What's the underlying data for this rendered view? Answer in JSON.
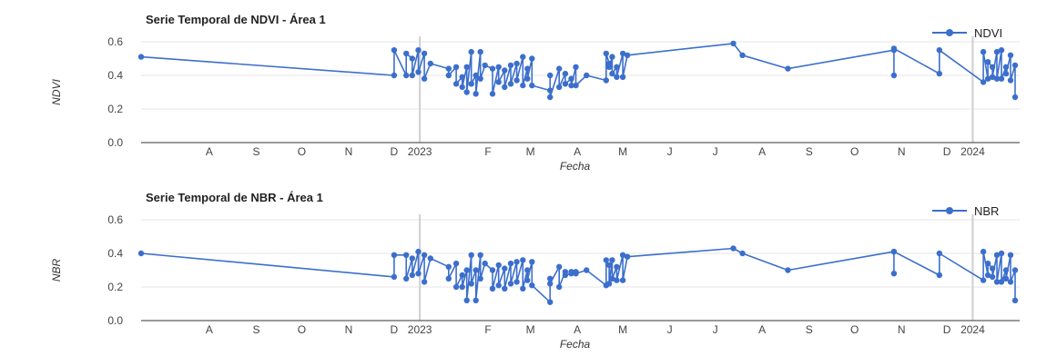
{
  "chart_data": [
    {
      "type": "line",
      "title": "Serie Temporal de NDVI - Área 1",
      "xlabel": "Fecha",
      "ylabel": "NDVI",
      "ylim": [
        0,
        0.6
      ],
      "yticks": [
        "0.0",
        "0.2",
        "0.4",
        "0.6"
      ],
      "xticks": [
        "A",
        "S",
        "O",
        "N",
        "D",
        "2023",
        "F",
        "M",
        "A",
        "M",
        "J",
        "J",
        "A",
        "S",
        "O",
        "N",
        "D",
        "2024"
      ],
      "legend_position": "top-right",
      "color": "#3c6fcc",
      "series": [
        {
          "name": "NDVI",
          "points": [
            [
              "2022-07-01",
              0.51
            ],
            [
              "2022-12-15",
              0.4
            ],
            [
              "2022-12-15",
              0.55
            ],
            [
              "2022-12-23",
              0.4
            ],
            [
              "2022-12-23",
              0.53
            ],
            [
              "2022-12-27",
              0.5
            ],
            [
              "2022-12-27",
              0.4
            ],
            [
              "2022-12-31",
              0.55
            ],
            [
              "2022-12-31",
              0.42
            ],
            [
              "2023-01-04",
              0.53
            ],
            [
              "2023-01-04",
              0.38
            ],
            [
              "2023-01-08",
              0.47
            ],
            [
              "2023-01-20",
              0.44
            ],
            [
              "2023-01-20",
              0.4
            ],
            [
              "2023-01-25",
              0.45
            ],
            [
              "2023-01-25",
              0.35
            ],
            [
              "2023-01-29",
              0.39
            ],
            [
              "2023-01-29",
              0.33
            ],
            [
              "2023-02-01",
              0.45
            ],
            [
              "2023-02-01",
              0.3
            ],
            [
              "2023-02-04",
              0.54
            ],
            [
              "2023-02-04",
              0.35
            ],
            [
              "2023-02-07",
              0.4
            ],
            [
              "2023-02-07",
              0.29
            ],
            [
              "2023-02-10",
              0.54
            ],
            [
              "2023-02-10",
              0.38
            ],
            [
              "2023-02-13",
              0.46
            ],
            [
              "2023-02-18",
              0.44
            ],
            [
              "2023-02-18",
              0.29
            ],
            [
              "2023-02-22",
              0.45
            ],
            [
              "2023-02-22",
              0.36
            ],
            [
              "2023-02-26",
              0.43
            ],
            [
              "2023-02-26",
              0.33
            ],
            [
              "2023-03-02",
              0.46
            ],
            [
              "2023-03-02",
              0.35
            ],
            [
              "2023-03-06",
              0.47
            ],
            [
              "2023-03-06",
              0.37
            ],
            [
              "2023-03-10",
              0.51
            ],
            [
              "2023-03-10",
              0.34
            ],
            [
              "2023-03-13",
              0.44
            ],
            [
              "2023-03-13",
              0.38
            ],
            [
              "2023-03-16",
              0.5
            ],
            [
              "2023-03-16",
              0.34
            ],
            [
              "2023-03-28",
              0.31
            ],
            [
              "2023-03-28",
              0.4
            ],
            [
              "2023-03-28",
              0.27
            ],
            [
              "2023-04-03",
              0.44
            ],
            [
              "2023-04-03",
              0.33
            ],
            [
              "2023-04-07",
              0.41
            ],
            [
              "2023-04-07",
              0.35
            ],
            [
              "2023-04-11",
              0.38
            ],
            [
              "2023-04-11",
              0.34
            ],
            [
              "2023-04-14",
              0.45
            ],
            [
              "2023-04-14",
              0.34
            ],
            [
              "2023-04-21",
              0.4
            ],
            [
              "2023-05-04",
              0.37
            ],
            [
              "2023-05-04",
              0.53
            ],
            [
              "2023-05-06",
              0.47
            ],
            [
              "2023-05-06",
              0.45
            ],
            [
              "2023-05-08",
              0.51
            ],
            [
              "2023-05-08",
              0.41
            ],
            [
              "2023-05-11",
              0.45
            ],
            [
              "2023-05-11",
              0.39
            ],
            [
              "2023-05-15",
              0.53
            ],
            [
              "2023-05-15",
              0.39
            ],
            [
              "2023-05-18",
              0.52
            ],
            [
              "2023-07-27",
              0.59
            ],
            [
              "2023-08-02",
              0.52
            ],
            [
              "2023-09-01",
              0.44
            ],
            [
              "2023-11-10",
              0.55
            ],
            [
              "2023-11-10",
              0.4
            ],
            [
              "2023-11-10",
              0.56
            ],
            [
              "2023-12-10",
              0.41
            ],
            [
              "2023-12-10",
              0.55
            ],
            [
              "2024-01-08",
              0.36
            ],
            [
              "2024-01-08",
              0.54
            ],
            [
              "2024-01-11",
              0.38
            ],
            [
              "2024-01-11",
              0.48
            ],
            [
              "2024-01-14",
              0.45
            ],
            [
              "2024-01-14",
              0.39
            ],
            [
              "2024-01-17",
              0.54
            ],
            [
              "2024-01-17",
              0.38
            ],
            [
              "2024-01-20",
              0.55
            ],
            [
              "2024-01-20",
              0.38
            ],
            [
              "2024-01-23",
              0.45
            ],
            [
              "2024-01-23",
              0.41
            ],
            [
              "2024-01-26",
              0.52
            ],
            [
              "2024-01-26",
              0.37
            ],
            [
              "2024-01-29",
              0.46
            ],
            [
              "2024-01-29",
              0.27
            ]
          ]
        }
      ]
    },
    {
      "type": "line",
      "title": "Serie Temporal de NBR - Área 1",
      "xlabel": "Fecha",
      "ylabel": "NBR",
      "ylim": [
        0,
        0.6
      ],
      "yticks": [
        "0.0",
        "0.2",
        "0.4",
        "0.6"
      ],
      "xticks": [
        "A",
        "S",
        "O",
        "N",
        "D",
        "2023",
        "F",
        "M",
        "A",
        "M",
        "J",
        "J",
        "A",
        "S",
        "O",
        "N",
        "D",
        "2024"
      ],
      "legend_position": "top-right",
      "color": "#3c6fcc",
      "series": [
        {
          "name": "NBR",
          "points": [
            [
              "2022-07-01",
              0.4
            ],
            [
              "2022-12-15",
              0.26
            ],
            [
              "2022-12-15",
              0.39
            ],
            [
              "2022-12-23",
              0.39
            ],
            [
              "2022-12-23",
              0.25
            ],
            [
              "2022-12-27",
              0.37
            ],
            [
              "2022-12-27",
              0.27
            ],
            [
              "2022-12-31",
              0.41
            ],
            [
              "2022-12-31",
              0.28
            ],
            [
              "2023-01-04",
              0.39
            ],
            [
              "2023-01-04",
              0.23
            ],
            [
              "2023-01-08",
              0.37
            ],
            [
              "2023-01-20",
              0.32
            ],
            [
              "2023-01-20",
              0.25
            ],
            [
              "2023-01-25",
              0.34
            ],
            [
              "2023-01-25",
              0.2
            ],
            [
              "2023-01-29",
              0.27
            ],
            [
              "2023-01-29",
              0.2
            ],
            [
              "2023-02-01",
              0.3
            ],
            [
              "2023-02-01",
              0.12
            ],
            [
              "2023-02-04",
              0.39
            ],
            [
              "2023-02-04",
              0.22
            ],
            [
              "2023-02-07",
              0.3
            ],
            [
              "2023-02-07",
              0.12
            ],
            [
              "2023-02-10",
              0.39
            ],
            [
              "2023-02-10",
              0.25
            ],
            [
              "2023-02-13",
              0.34
            ],
            [
              "2023-02-18",
              0.3
            ],
            [
              "2023-02-18",
              0.19
            ],
            [
              "2023-02-22",
              0.33
            ],
            [
              "2023-02-22",
              0.21
            ],
            [
              "2023-02-26",
              0.31
            ],
            [
              "2023-02-26",
              0.19
            ],
            [
              "2023-03-02",
              0.34
            ],
            [
              "2023-03-02",
              0.22
            ],
            [
              "2023-03-06",
              0.35
            ],
            [
              "2023-03-06",
              0.23
            ],
            [
              "2023-03-10",
              0.36
            ],
            [
              "2023-03-10",
              0.19
            ],
            [
              "2023-03-13",
              0.3
            ],
            [
              "2023-03-13",
              0.24
            ],
            [
              "2023-03-16",
              0.35
            ],
            [
              "2023-03-16",
              0.21
            ],
            [
              "2023-03-28",
              0.11
            ],
            [
              "2023-03-28",
              0.25
            ],
            [
              "2023-03-28",
              0.22
            ],
            [
              "2023-04-03",
              0.32
            ],
            [
              "2023-04-03",
              0.2
            ],
            [
              "2023-04-07",
              0.29
            ],
            [
              "2023-04-07",
              0.27
            ],
            [
              "2023-04-11",
              0.28
            ],
            [
              "2023-04-11",
              0.29
            ],
            [
              "2023-04-14",
              0.29
            ],
            [
              "2023-04-14",
              0.28
            ],
            [
              "2023-04-21",
              0.3
            ],
            [
              "2023-05-04",
              0.21
            ],
            [
              "2023-05-04",
              0.36
            ],
            [
              "2023-05-06",
              0.33
            ],
            [
              "2023-05-06",
              0.22
            ],
            [
              "2023-05-08",
              0.36
            ],
            [
              "2023-05-08",
              0.25
            ],
            [
              "2023-05-11",
              0.32
            ],
            [
              "2023-05-11",
              0.24
            ],
            [
              "2023-05-15",
              0.39
            ],
            [
              "2023-05-15",
              0.24
            ],
            [
              "2023-05-18",
              0.38
            ],
            [
              "2023-07-27",
              0.43
            ],
            [
              "2023-08-02",
              0.4
            ],
            [
              "2023-09-01",
              0.3
            ],
            [
              "2023-11-10",
              0.41
            ],
            [
              "2023-11-10",
              0.28
            ],
            [
              "2023-11-10",
              0.41
            ],
            [
              "2023-12-10",
              0.27
            ],
            [
              "2023-12-10",
              0.4
            ],
            [
              "2024-01-08",
              0.24
            ],
            [
              "2024-01-08",
              0.41
            ],
            [
              "2024-01-11",
              0.27
            ],
            [
              "2024-01-11",
              0.34
            ],
            [
              "2024-01-14",
              0.31
            ],
            [
              "2024-01-14",
              0.26
            ],
            [
              "2024-01-17",
              0.39
            ],
            [
              "2024-01-17",
              0.23
            ],
            [
              "2024-01-20",
              0.4
            ],
            [
              "2024-01-20",
              0.23
            ],
            [
              "2024-01-23",
              0.3
            ],
            [
              "2024-01-23",
              0.25
            ],
            [
              "2024-01-26",
              0.39
            ],
            [
              "2024-01-26",
              0.23
            ],
            [
              "2024-01-29",
              0.3
            ],
            [
              "2024-01-29",
              0.12
            ]
          ]
        }
      ]
    }
  ]
}
